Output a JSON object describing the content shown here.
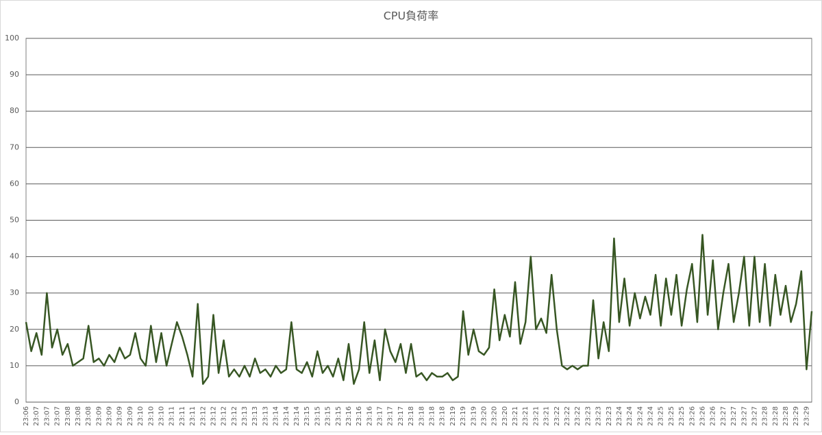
{
  "chart_data": {
    "type": "line",
    "title": "CPU負荷率",
    "categories": [
      "23:06",
      null,
      "23:07",
      null,
      "23:07",
      null,
      "23:07",
      null,
      "23:08",
      null,
      "23:08",
      null,
      "23:08",
      null,
      "23:09",
      null,
      "23:09",
      null,
      "23:09",
      null,
      "23:09",
      null,
      "23:10",
      null,
      "23:10",
      null,
      "23:10",
      null,
      "23:11",
      null,
      "23:11",
      null,
      "23:11",
      null,
      "23:12",
      null,
      "23:12",
      null,
      "23:12",
      null,
      "23:12",
      null,
      "23:13",
      null,
      "23:13",
      null,
      "23:13",
      null,
      "23:14",
      null,
      "23:14",
      null,
      "23:14",
      null,
      "23:15",
      null,
      "23:15",
      null,
      "23:15",
      null,
      "23:15",
      null,
      "23:16",
      null,
      "23:16",
      null,
      "23:16",
      null,
      "23:17",
      null,
      "23:17",
      null,
      "23:17",
      null,
      "23:18",
      null,
      "23:18",
      null,
      "23:18",
      null,
      "23:18",
      null,
      "23:19",
      null,
      "23:19",
      null,
      "23:19",
      null,
      "23:20",
      null,
      "23:20",
      null,
      "23:20",
      null,
      "23:21",
      null,
      "23:21",
      null,
      "23:21",
      null,
      "23:21",
      null,
      "23:22",
      null,
      "23:22",
      null,
      "23:22",
      null,
      "23:23",
      null,
      "23:23",
      null,
      "23:23",
      null,
      "23:24",
      null,
      "23:24",
      null,
      "23:24",
      null,
      "23:24",
      null,
      "23:25",
      null,
      "23:25",
      null,
      "23:25",
      null,
      "23:26",
      null,
      "23:26",
      null,
      "23:26",
      null,
      "23:27",
      null,
      "23:27",
      null,
      "23:27",
      null,
      "23:27",
      null,
      "23:28",
      null,
      "23:28",
      null,
      "23:28",
      null,
      "23:29",
      null,
      "23:29",
      null
    ],
    "series": [
      {
        "name": "CPU負荷率",
        "color": "#375623",
        "values": [
          22,
          14,
          19,
          13,
          30,
          15,
          20,
          13,
          16,
          10,
          11,
          12,
          21,
          11,
          12,
          10,
          13,
          11,
          15,
          12,
          13,
          19,
          12,
          10,
          21,
          11,
          19,
          10,
          16,
          22,
          18,
          13,
          7,
          27,
          5,
          7,
          24,
          8,
          17,
          7,
          9,
          7,
          10,
          7,
          12,
          8,
          9,
          7,
          10,
          8,
          9,
          22,
          9,
          8,
          11,
          7,
          14,
          8,
          10,
          7,
          12,
          6,
          16,
          5,
          9,
          22,
          8,
          17,
          6,
          20,
          14,
          11,
          16,
          8,
          16,
          7,
          8,
          6,
          8,
          7,
          7,
          8,
          6,
          7,
          25,
          13,
          20,
          14,
          13,
          15,
          31,
          17,
          24,
          18,
          33,
          16,
          22,
          40,
          20,
          23,
          19,
          35,
          20,
          10,
          9,
          10,
          9,
          10,
          10,
          28,
          12,
          22,
          14,
          45,
          22,
          34,
          21,
          30,
          23,
          29,
          24,
          35,
          21,
          34,
          24,
          35,
          21,
          31,
          38,
          22,
          46,
          24,
          39,
          20,
          30,
          38,
          22,
          30,
          40,
          21,
          40,
          22,
          38,
          21,
          35,
          24,
          32,
          22,
          27,
          36,
          9,
          25
        ]
      }
    ],
    "ylim": [
      0,
      100
    ],
    "yticks": [
      0,
      10,
      20,
      30,
      40,
      50,
      60,
      70,
      80,
      90,
      100
    ],
    "grid": true
  }
}
